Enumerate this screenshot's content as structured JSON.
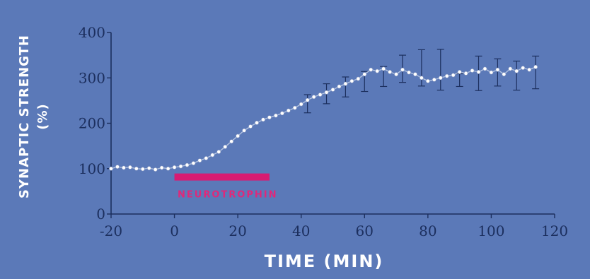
{
  "chart_data": {
    "type": "line",
    "title": "",
    "xlabel": "TIME (MIN)",
    "ylabel": "SYNAPTIC STRENGTH",
    "ylabel_unit": "(%)",
    "xlim": [
      -20,
      120
    ],
    "ylim": [
      0,
      400
    ],
    "x_ticks": [
      -20,
      0,
      20,
      40,
      60,
      80,
      100,
      120
    ],
    "y_ticks": [
      0,
      100,
      200,
      300,
      400
    ],
    "grid": false,
    "legend": "none",
    "annotation": {
      "label": "NEUROTROPHIN",
      "x_start": 0,
      "x_end": 30,
      "y": 80,
      "color": "#d81b72"
    },
    "series": [
      {
        "x": [
          -20,
          -18,
          -16,
          -14,
          -12,
          -10,
          -8,
          -6,
          -4,
          -2,
          0,
          2,
          4,
          6,
          8,
          10,
          12,
          14,
          16,
          18,
          20,
          22,
          24,
          26,
          28,
          30,
          32,
          34,
          36,
          38,
          40,
          42,
          44,
          46,
          48,
          50,
          52,
          54,
          56,
          58,
          60,
          62,
          64,
          66,
          68,
          70,
          72,
          74,
          76,
          78,
          80,
          82,
          84,
          86,
          88,
          90,
          92,
          94,
          96,
          98,
          100,
          102,
          104,
          106,
          108,
          110,
          112,
          114
        ],
        "values": [
          100,
          104,
          102,
          103,
          100,
          99,
          101,
          98,
          102,
          100,
          103,
          105,
          108,
          112,
          118,
          123,
          130,
          137,
          148,
          160,
          172,
          184,
          193,
          201,
          208,
          213,
          217,
          222,
          228,
          234,
          242,
          251,
          258,
          263,
          268,
          274,
          281,
          287,
          293,
          298,
          308,
          318,
          315,
          320,
          313,
          308,
          318,
          312,
          308,
          300,
          293,
          296,
          300,
          304,
          306,
          313,
          310,
          316,
          313,
          320,
          312,
          318,
          308,
          320,
          315,
          322,
          318,
          324
        ],
        "error_x": [
          42,
          48,
          54,
          60,
          66,
          72,
          78,
          84,
          90,
          96,
          102,
          108,
          114
        ],
        "error_y": [
          243,
          265,
          280,
          292,
          303,
          320,
          322,
          318,
          295,
          310,
          312,
          305,
          312
        ],
        "error_size": [
          20,
          22,
          22,
          22,
          22,
          30,
          40,
          45,
          14,
          38,
          30,
          32,
          36
        ],
        "color": "#ffffff"
      }
    ]
  }
}
